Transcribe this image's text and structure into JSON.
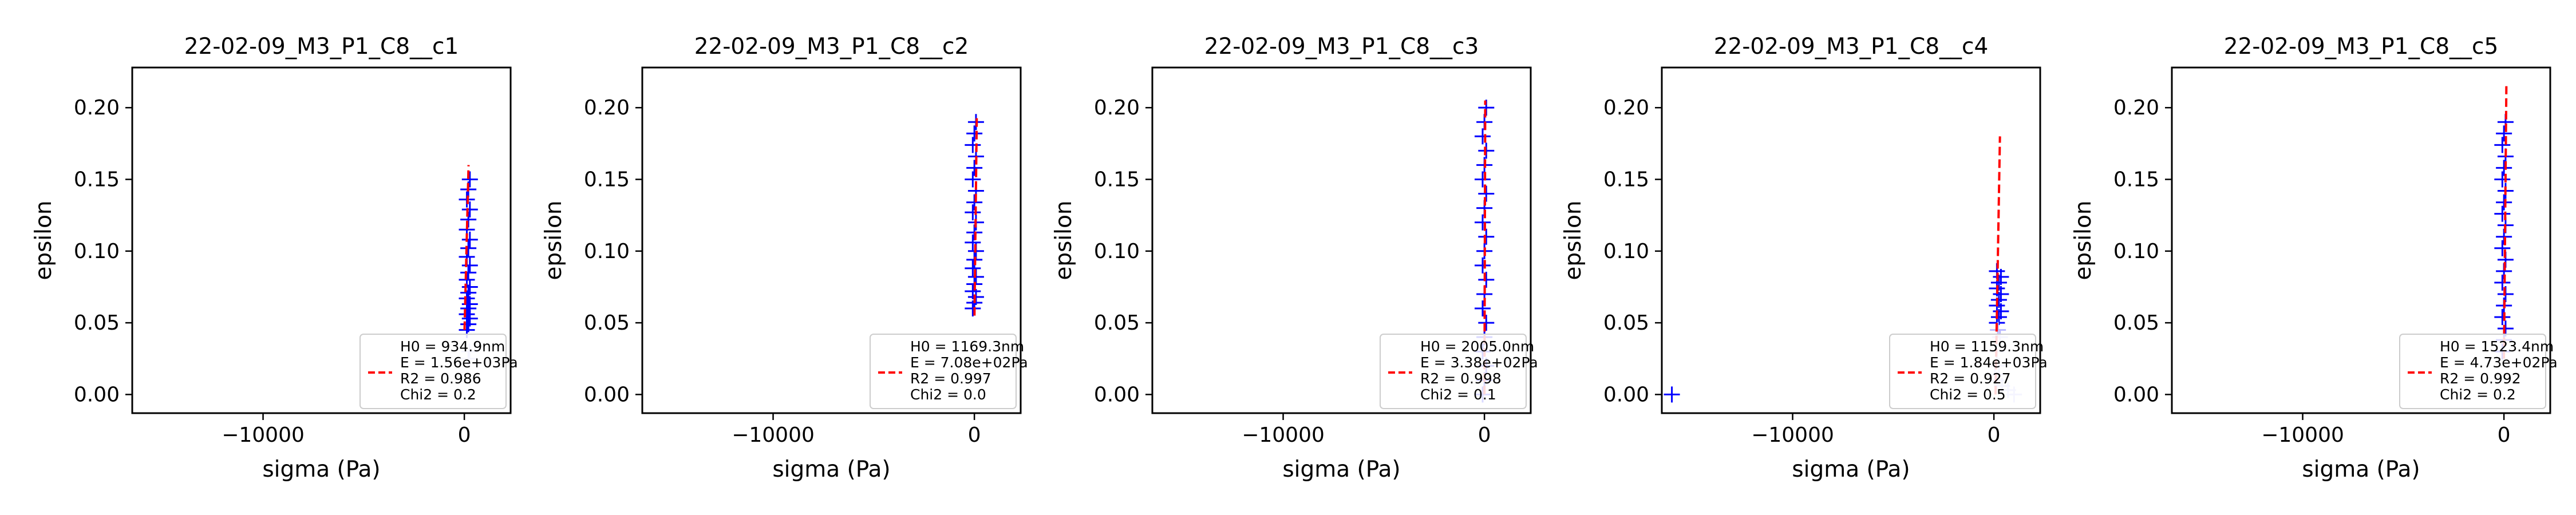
{
  "figure": {
    "background": "#ffffff"
  },
  "colors": {
    "fit": "#ff0000",
    "points": "#0000ff",
    "points_faded": "#b8b8ff",
    "axes": "#000000"
  },
  "chart_data": [
    {
      "type": "scatter",
      "title": "22-02-09_M3_P1_C8__c1",
      "xlabel": "sigma (Pa)",
      "ylabel": "epsilon",
      "xlim": [
        -16500,
        2300
      ],
      "ylim": [
        -0.013,
        0.228
      ],
      "xticks": [
        -10000,
        0
      ],
      "xtick_labels": [
        "−10000",
        "0"
      ],
      "yticks": [
        0.0,
        0.05,
        0.1,
        0.15,
        0.2
      ],
      "ytick_labels": [
        "0.00",
        "0.05",
        "0.10",
        "0.15",
        "0.20"
      ],
      "fit": {
        "x": [
          10,
          210
        ],
        "y": [
          0.045,
          0.16
        ]
      },
      "points": {
        "x_center": 200,
        "x_spread": 150,
        "y": [
          0.045,
          0.049,
          0.053,
          0.056,
          0.06,
          0.063,
          0.067,
          0.071,
          0.075,
          0.08,
          0.085,
          0.09,
          0.096,
          0.102,
          0.108,
          0.115,
          0.122,
          0.129,
          0.136,
          0.143,
          0.15
        ],
        "faded_y": [
          0.025,
          0.03
        ],
        "faded_x": [
          200,
          250
        ]
      },
      "outliers": [],
      "legend": {
        "position": "lower-right",
        "lines": [
          "H0 = 934.9nm",
          "E = 1.56e+03Pa",
          "R2 = 0.986",
          "Chi2 = 0.2"
        ]
      }
    },
    {
      "type": "scatter",
      "title": "22-02-09_M3_P1_C8__c2",
      "xlabel": "sigma (Pa)",
      "ylabel": "epsilon",
      "xlim": [
        -16500,
        2300
      ],
      "ylim": [
        -0.013,
        0.228
      ],
      "xticks": [
        -10000,
        0
      ],
      "xtick_labels": [
        "−10000",
        "0"
      ],
      "yticks": [
        0.0,
        0.05,
        0.1,
        0.15,
        0.2
      ],
      "ytick_labels": [
        "0.00",
        "0.05",
        "0.10",
        "0.15",
        "0.20"
      ],
      "fit": {
        "x": [
          5,
          120
        ],
        "y": [
          0.055,
          0.195
        ]
      },
      "points": {
        "x_center": 0,
        "x_spread": 160,
        "y": [
          0.06,
          0.064,
          0.068,
          0.072,
          0.077,
          0.082,
          0.088,
          0.094,
          0.1,
          0.106,
          0.113,
          0.12,
          0.127,
          0.134,
          0.142,
          0.15,
          0.158,
          0.166,
          0.174,
          0.182,
          0.19
        ],
        "faded_y": [],
        "faded_x": []
      },
      "outliers": [],
      "legend": {
        "position": "lower-right",
        "lines": [
          "H0 = 1169.3nm",
          "E = 7.08e+02Pa",
          "R2 = 0.997",
          "Chi2 = 0.0"
        ]
      }
    },
    {
      "type": "scatter",
      "title": "22-02-09_M3_P1_C8__c3",
      "xlabel": "sigma (Pa)",
      "ylabel": "epsilon",
      "xlim": [
        -16500,
        2300
      ],
      "ylim": [
        -0.013,
        0.228
      ],
      "xticks": [
        -10000,
        0
      ],
      "xtick_labels": [
        "−10000",
        "0"
      ],
      "yticks": [
        0.0,
        0.05,
        0.1,
        0.15,
        0.2
      ],
      "ytick_labels": [
        "0.00",
        "0.05",
        "0.10",
        "0.15",
        "0.20"
      ],
      "fit": {
        "x": [
          0,
          40
        ],
        "y": [
          0.0,
          0.205
        ]
      },
      "points": {
        "x_center": 0,
        "x_spread": 180,
        "y": [
          0.0,
          0.01,
          0.02,
          0.03,
          0.04,
          0.05,
          0.06,
          0.07,
          0.08,
          0.09,
          0.1,
          0.11,
          0.12,
          0.13,
          0.14,
          0.15,
          0.16,
          0.17,
          0.18,
          0.19,
          0.2
        ],
        "faded_y": [],
        "faded_x": []
      },
      "outliers": [],
      "legend": {
        "position": "lower-right",
        "lines": [
          "H0 = 2005.0nm",
          "E = 3.38e+02Pa",
          "R2 = 0.998",
          "Chi2 = 0.1"
        ]
      }
    },
    {
      "type": "scatter",
      "title": "22-02-09_M3_P1_C8__c4",
      "xlabel": "sigma (Pa)",
      "ylabel": "epsilon",
      "xlim": [
        -16500,
        2300
      ],
      "ylim": [
        -0.013,
        0.228
      ],
      "xticks": [
        -10000,
        0
      ],
      "xtick_labels": [
        "−10000",
        "0"
      ],
      "yticks": [
        0.0,
        0.05,
        0.1,
        0.15,
        0.2
      ],
      "ytick_labels": [
        "0.00",
        "0.05",
        "0.10",
        "0.15",
        "0.20"
      ],
      "fit": {
        "x": [
          80,
          300
        ],
        "y": [
          0.0,
          0.18
        ]
      },
      "points": {
        "x_center": 250,
        "x_spread": 200,
        "y": [
          0.05,
          0.054,
          0.058,
          0.062,
          0.066,
          0.07,
          0.074,
          0.078,
          0.082,
          0.086
        ],
        "faded_y": [
          0.0,
          0.003,
          0.006,
          0.01,
          0.014,
          0.02,
          0.03,
          0.04,
          0.045
        ],
        "faded_x": [
          1000,
          700,
          400,
          150,
          50,
          250,
          150,
          300,
          200
        ]
      },
      "outliers": [
        {
          "x": -16000,
          "y": 0.0
        }
      ],
      "legend": {
        "position": "lower-right",
        "lines": [
          "H0 = 1159.3nm",
          "E = 1.84e+03Pa",
          "R2 = 0.927",
          "Chi2 = 0.5"
        ]
      }
    },
    {
      "type": "scatter",
      "title": "22-02-09_M3_P1_C8__c5",
      "xlabel": "sigma (Pa)",
      "ylabel": "epsilon",
      "xlim": [
        -16500,
        2300
      ],
      "ylim": [
        -0.013,
        0.228
      ],
      "xticks": [
        -10000,
        0
      ],
      "xtick_labels": [
        "−10000",
        "0"
      ],
      "yticks": [
        0.0,
        0.05,
        0.1,
        0.15,
        0.2
      ],
      "ytick_labels": [
        "0.00",
        "0.05",
        "0.10",
        "0.15",
        "0.20"
      ],
      "fit": {
        "x": [
          0,
          120
        ],
        "y": [
          0.025,
          0.215
        ]
      },
      "points": {
        "x_center": 0,
        "x_spread": 160,
        "y": [
          0.03,
          0.038,
          0.046,
          0.054,
          0.062,
          0.07,
          0.078,
          0.086,
          0.094,
          0.102,
          0.11,
          0.118,
          0.126,
          0.134,
          0.142,
          0.15,
          0.158,
          0.166,
          0.174,
          0.182,
          0.19
        ],
        "faded_y": [],
        "faded_x": []
      },
      "outliers": [],
      "legend": {
        "position": "lower-right",
        "lines": [
          "H0 = 1523.4nm",
          "E = 4.73e+02Pa",
          "R2 = 0.992",
          "Chi2 = 0.2"
        ]
      }
    }
  ]
}
